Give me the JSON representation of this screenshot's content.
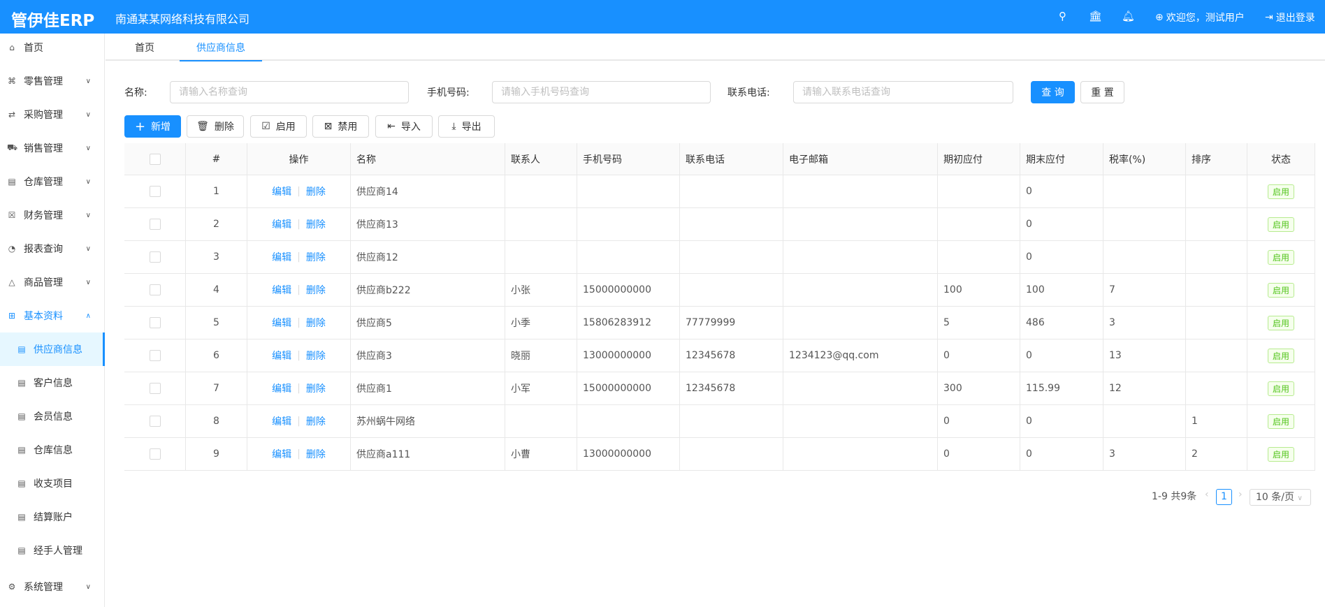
{
  "header": {
    "logo": "管伊佳ERP",
    "company": "南通某某网络科技有限公司",
    "welcome": "欢迎您，测试用户",
    "logout": "退出登录",
    "brand_color": "#1890ff"
  },
  "sidebar": {
    "items": [
      {
        "label": "首页",
        "icon": "home-icon"
      },
      {
        "label": "零售管理",
        "icon": "gift-icon",
        "chevron": "down"
      },
      {
        "label": "采购管理",
        "icon": "swap-icon",
        "chevron": "down"
      },
      {
        "label": "销售管理",
        "icon": "cart-icon",
        "chevron": "down"
      },
      {
        "label": "仓库管理",
        "icon": "warehouse-icon",
        "chevron": "down"
      },
      {
        "label": "财务管理",
        "icon": "finance-icon",
        "chevron": "down"
      },
      {
        "label": "报表查询",
        "icon": "pie-chart-icon",
        "chevron": "down"
      },
      {
        "label": "商品管理",
        "icon": "shopping-bag-icon",
        "chevron": "down"
      },
      {
        "label": "基本资料",
        "icon": "appstore-icon",
        "chevron": "up"
      }
    ],
    "sub_items": [
      "供应商信息",
      "客户信息",
      "会员信息",
      "仓库信息",
      "收支项目",
      "结算账户",
      "经手人管理"
    ],
    "bottom": {
      "label": "系统管理",
      "icon": "setting-icon"
    }
  },
  "tabs": [
    "首页",
    "供应商信息"
  ],
  "filters": {
    "name_label": "名称:",
    "name_placeholder": "请输入名称查询",
    "phone_label": "手机号码:",
    "phone_placeholder": "请输入手机号码查询",
    "tel_label": "联系电话:",
    "tel_placeholder": "请输入联系电话查询",
    "search": "查 询",
    "reset": "重 置"
  },
  "toolbar": {
    "add": "新增",
    "delete": "删除",
    "enable": "启用",
    "disable": "禁用",
    "import": "导入",
    "export": "导出"
  },
  "table": {
    "columns": [
      "",
      "#",
      "操作",
      "名称",
      "联系人",
      "手机号码",
      "联系电话",
      "电子邮箱",
      "期初应付",
      "期末应付",
      "税率(%)",
      "排序",
      "状态"
    ],
    "edit": "编辑",
    "del": "删除",
    "rows": [
      [
        "1",
        "供应商14",
        "",
        "",
        "",
        "",
        "",
        "0",
        "",
        "",
        "启用"
      ],
      [
        "2",
        "供应商13",
        "",
        "",
        "",
        "",
        "",
        "0",
        "",
        "",
        "启用"
      ],
      [
        "3",
        "供应商12",
        "",
        "",
        "",
        "",
        "",
        "0",
        "",
        "",
        "启用"
      ],
      [
        "4",
        "供应商b222",
        "小张",
        "15000000000",
        "",
        "",
        "100",
        "100",
        "7",
        "",
        "启用"
      ],
      [
        "5",
        "供应商5",
        "小季",
        "15806283912",
        "77779999",
        "",
        "5",
        "486",
        "3",
        "",
        "启用"
      ],
      [
        "6",
        "供应商3",
        "晓丽",
        "13000000000",
        "12345678",
        "1234123@qq.com",
        "0",
        "0",
        "13",
        "",
        "启用"
      ],
      [
        "7",
        "供应商1",
        "小军",
        "15000000000",
        "12345678",
        "",
        "300",
        "115.99",
        "12",
        "",
        "启用"
      ],
      [
        "8",
        "苏州蜗牛网络",
        "",
        "",
        "",
        "",
        "0",
        "0",
        "",
        "1",
        "启用"
      ],
      [
        "9",
        "供应商a111",
        "小曹",
        "13000000000",
        "",
        "",
        "0",
        "0",
        "3",
        "2",
        "启用"
      ]
    ]
  },
  "pagination": {
    "summary": "1-9 共9条",
    "current": "1",
    "page_size": "10 条/页"
  }
}
